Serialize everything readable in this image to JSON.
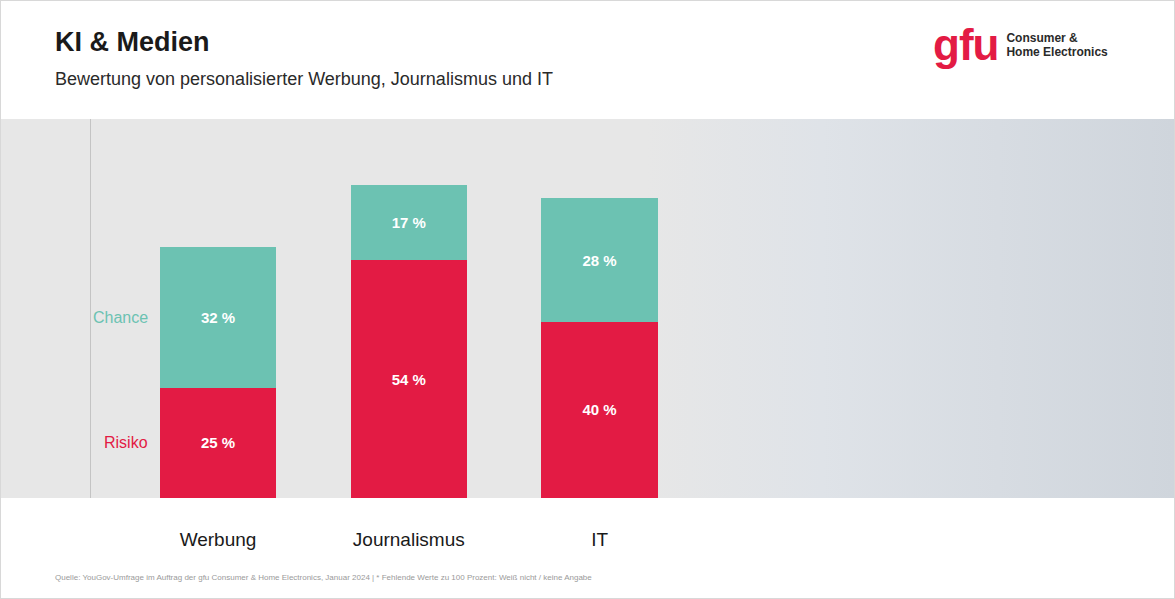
{
  "chart_data": {
    "type": "bar",
    "title": "KI & Medien",
    "subtitle": "Bewertung von personalisierter Werbung, Journalismus und IT",
    "categories": [
      "Werbung",
      "Journalismus",
      "IT"
    ],
    "series": [
      {
        "name": "Risiko",
        "color": "#e31b44",
        "values": [
          25,
          54,
          40
        ],
        "value_labels": [
          "25 %",
          "54 %",
          "40 %"
        ]
      },
      {
        "name": "Chance",
        "color": "#6cc2b2",
        "values": [
          32,
          17,
          28
        ],
        "value_labels": [
          "32 %",
          "17 %",
          "28 %"
        ]
      }
    ],
    "stacked": true,
    "data_labels": true,
    "tick_labels": "x",
    "ylim": [
      0,
      86
    ],
    "logo": {
      "text": "gfu",
      "tagline": [
        "Consumer &",
        "Home Electronics"
      ]
    },
    "source": "Quelle: YouGov-Umfrage im Auftrag der gfu Consumer & Home Electronics, Januar 2024 | * Fehlende Werte zu 100 Prozent: Weiß nicht / keine Angabe"
  }
}
